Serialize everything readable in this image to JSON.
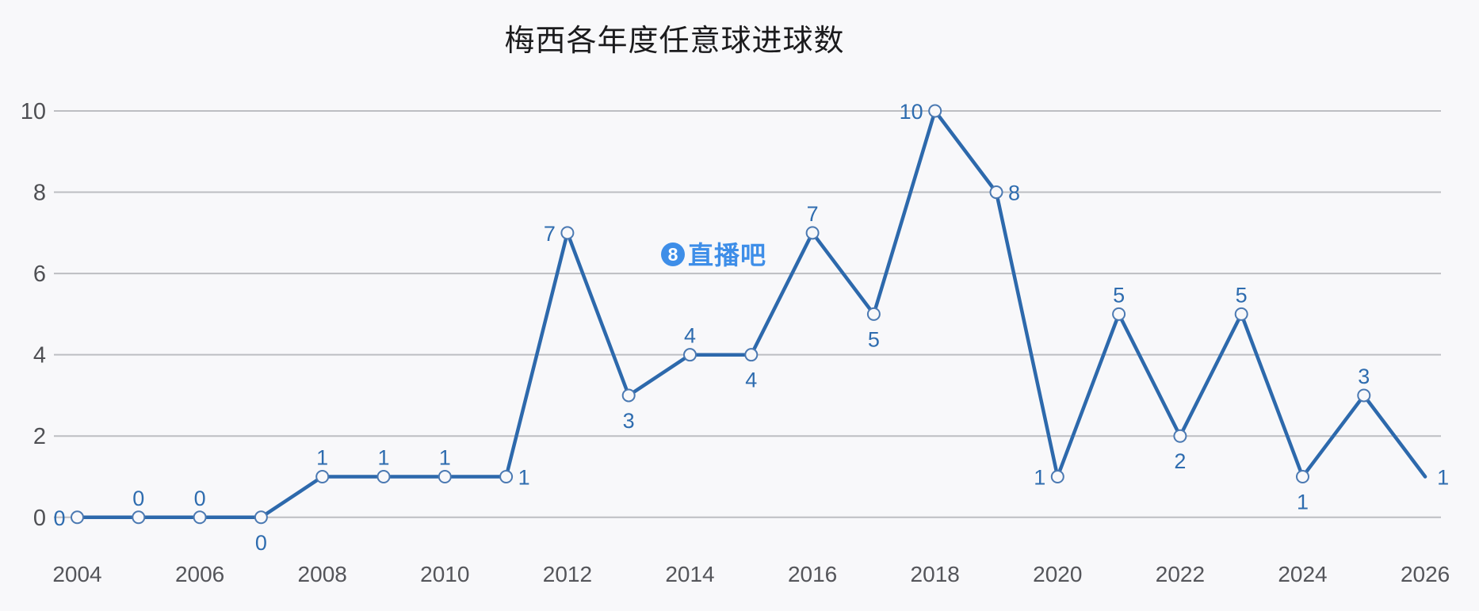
{
  "page": {
    "background": "#f8f8fa"
  },
  "header": {
    "title": "梅西各年度任意球进球数"
  },
  "watermark": {
    "badge_digit": "8",
    "brand_text": "直播吧",
    "color": "#3e8ee8"
  },
  "chart_data": {
    "type": "line",
    "title": "梅西各年度任意球进球数",
    "xlabel": "",
    "ylabel": "",
    "x": [
      2004,
      2005,
      2006,
      2007,
      2008,
      2009,
      2010,
      2011,
      2012,
      2013,
      2014,
      2015,
      2016,
      2017,
      2018,
      2019,
      2020,
      2021,
      2022,
      2023,
      2024,
      2025,
      2026
    ],
    "values": [
      0,
      0,
      0,
      0,
      1,
      1,
      1,
      1,
      7,
      3,
      4,
      4,
      7,
      5,
      10,
      8,
      1,
      5,
      2,
      5,
      1,
      3,
      1
    ],
    "label_positions": [
      "left",
      "top",
      "top",
      "bottom",
      "top",
      "top",
      "top",
      "right",
      "left",
      "bottom",
      "top",
      "bottom",
      "top",
      "bottom",
      "left",
      "right",
      "left",
      "top",
      "bottom",
      "top",
      "bottom",
      "top",
      "right"
    ],
    "x_ticks": [
      2004,
      2006,
      2008,
      2010,
      2012,
      2014,
      2016,
      2018,
      2020,
      2022,
      2024,
      2026
    ],
    "y_ticks": [
      0,
      2,
      4,
      6,
      8,
      10
    ],
    "xlim": [
      2004,
      2026
    ],
    "ylim": [
      0,
      10
    ],
    "grid": "horizontal",
    "legend": "none",
    "marker_on_last_point": false,
    "colors": {
      "line": "#2d69ac",
      "marker_ring": "#4b79b2",
      "marker_fill": "#f8f8fa",
      "data_label": "#2e6caf",
      "grid_line": "#bdbec2",
      "tick_label": "#54555a",
      "title": "#1b1b1d",
      "watermark": "#3e8ee8"
    }
  }
}
